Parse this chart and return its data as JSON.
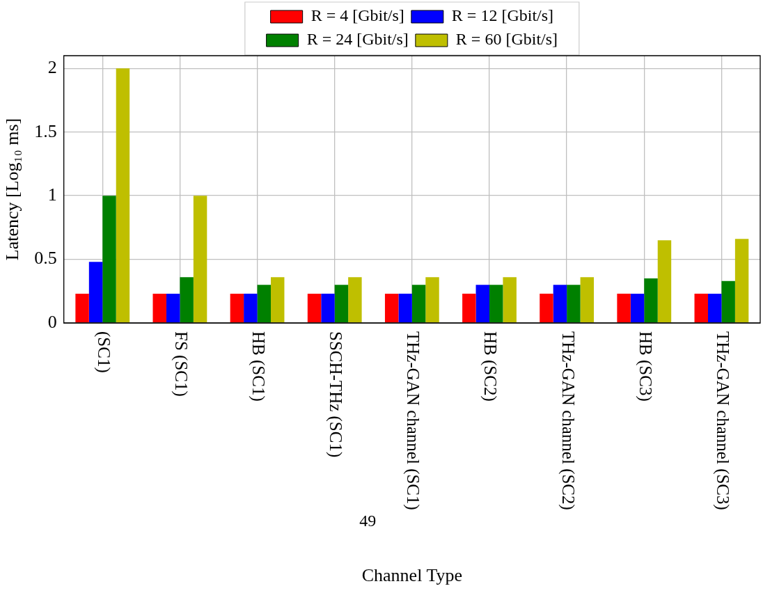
{
  "chart_data": {
    "type": "bar",
    "categories": [
      "(SC1)",
      "FS (SC1)",
      "HB (SC1)",
      "SSCH-THz (SC1)",
      "THz-GAN channel (SC1)",
      "HB (SC2)",
      "THz-GAN channel (SC2)",
      "HB (SC3)",
      "THz-GAN channel (SC3)"
    ],
    "series": [
      {
        "name": "R = 4 [Gbit/s]",
        "color": "#ff0000",
        "values": [
          0.23,
          0.23,
          0.23,
          0.23,
          0.23,
          0.23,
          0.23,
          0.23,
          0.23
        ]
      },
      {
        "name": "R = 12 [Gbit/s]",
        "color": "#0000ff",
        "values": [
          0.48,
          0.23,
          0.23,
          0.23,
          0.23,
          0.3,
          0.3,
          0.23,
          0.23
        ]
      },
      {
        "name": "R = 24 [Gbit/s]",
        "color": "#008000",
        "values": [
          1,
          0.36,
          0.3,
          0.3,
          0.3,
          0.3,
          0.3,
          0.35,
          0.33
        ]
      },
      {
        "name": "R = 60 [Gbit/s]",
        "color": "#bfbf00",
        "values": [
          2,
          1,
          0.36,
          0.36,
          0.36,
          0.36,
          0.36,
          0.65,
          0.66
        ]
      }
    ],
    "xlabel": "Channel Type",
    "ylabel": "Latency [Log₁₀ ms]",
    "ylim": [
      0,
      2.1
    ],
    "yticks": [
      0,
      0.5,
      1,
      1.5,
      2
    ],
    "grid": true,
    "legend": "top",
    "annotations": [
      "49"
    ]
  }
}
